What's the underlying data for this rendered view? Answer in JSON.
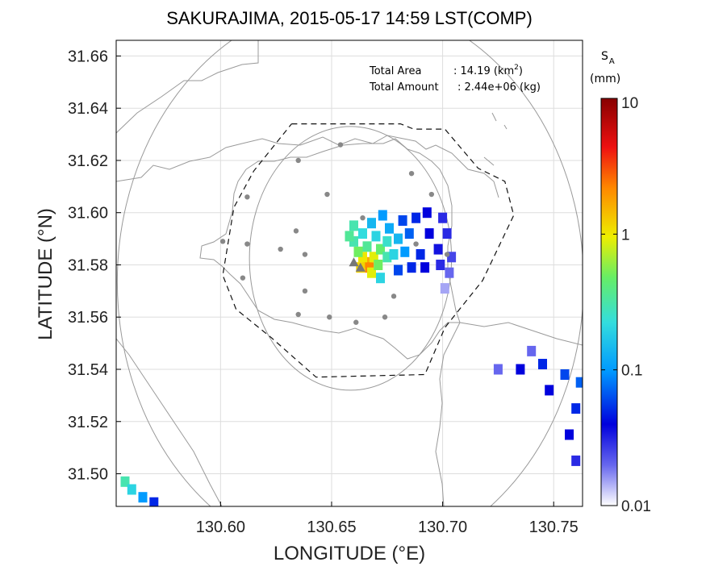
{
  "chart_data": {
    "type": "heatmap",
    "title": "SAKURAJIMA, 2015-05-17 14:59 LST(COMP)",
    "xlabel": "LONGITUDE (°E)",
    "ylabel": "LATITUDE (°N)",
    "xlim": [
      130.553,
      130.763
    ],
    "ylim": [
      31.4875,
      31.666
    ],
    "xticks": [
      130.6,
      130.65,
      130.7,
      130.75
    ],
    "xtick_labels": [
      "130.60",
      "130.65",
      "130.70",
      "130.75"
    ],
    "yticks": [
      31.5,
      31.52,
      31.54,
      31.56,
      31.58,
      31.6,
      31.62,
      31.64,
      31.66
    ],
    "ytick_labels": [
      "31.50",
      "31.52",
      "31.54",
      "31.56",
      "31.58",
      "31.60",
      "31.62",
      "31.64",
      "31.66"
    ],
    "grid": true,
    "annotations": {
      "total_area_label": "Total Area",
      "total_area_value": ": 14.19 (km",
      "total_area_sup": "2",
      "total_area_close": ")",
      "total_amount_label": "Total Amount",
      "total_amount_value": ": 2.44e+06 (kg)"
    },
    "colorbar": {
      "label_main": "S",
      "label_sub": "A",
      "unit": "(mm)",
      "scale": "log",
      "range": [
        0.01,
        10
      ],
      "ticks": [
        "10",
        "1",
        "0.1",
        "0.01"
      ],
      "placement": "right"
    },
    "vent_markers": [
      [
        130.66,
        31.581
      ],
      [
        130.663,
        31.579
      ]
    ],
    "stations": [
      [
        130.654,
        31.626
      ],
      [
        130.635,
        31.62
      ],
      [
        130.686,
        31.615
      ],
      [
        130.612,
        31.606
      ],
      [
        130.648,
        31.607
      ],
      [
        130.695,
        31.607
      ],
      [
        130.664,
        31.598
      ],
      [
        130.601,
        31.589
      ],
      [
        130.612,
        31.588
      ],
      [
        130.634,
        31.593
      ],
      [
        130.627,
        31.586
      ],
      [
        130.638,
        31.584
      ],
      [
        130.688,
        31.588
      ],
      [
        130.702,
        31.584
      ],
      [
        130.61,
        31.575
      ],
      [
        130.638,
        31.57
      ],
      [
        130.678,
        31.568
      ],
      [
        130.635,
        31.561
      ],
      [
        130.649,
        31.56
      ],
      [
        130.661,
        31.558
      ],
      [
        130.674,
        31.56
      ]
    ],
    "inner_circle": {
      "center": [
        130.6585,
        31.5825
      ],
      "radius_lon": 0.0455,
      "radius_lat": 0.0505
    },
    "outer_circle": {
      "center": [
        130.6585,
        31.5735
      ],
      "radius_lon": 0.105,
      "radius_lat": 0.1075
    },
    "dashed_boundary": [
      [
        130.632,
        31.634
      ],
      [
        130.681,
        31.634
      ],
      [
        130.687,
        31.632
      ],
      [
        130.701,
        31.632
      ],
      [
        130.716,
        31.617
      ],
      [
        130.728,
        31.612
      ],
      [
        130.732,
        31.599
      ],
      [
        130.718,
        31.574
      ],
      [
        130.701,
        31.556
      ],
      [
        130.692,
        31.538
      ],
      [
        130.643,
        31.537
      ],
      [
        130.623,
        31.552
      ],
      [
        130.607,
        31.563
      ],
      [
        130.601,
        31.576
      ],
      [
        130.606,
        31.602
      ],
      [
        130.615,
        31.616
      ],
      [
        130.632,
        31.634
      ]
    ],
    "ash_fields": [
      {
        "name": "plume",
        "cells": [
          [
            130.666,
            31.581,
            1.6
          ],
          [
            130.667,
            31.579,
            2.2
          ],
          [
            130.664,
            31.583,
            1.0
          ],
          [
            130.669,
            31.583,
            0.9
          ],
          [
            130.668,
            31.577,
            0.9
          ],
          [
            130.663,
            31.579,
            1.2
          ],
          [
            130.671,
            31.58,
            0.5
          ],
          [
            130.662,
            31.585,
            0.5
          ],
          [
            130.672,
            31.586,
            0.45
          ],
          [
            130.666,
            31.587,
            0.35
          ],
          [
            130.66,
            31.589,
            0.3
          ],
          [
            130.675,
            31.583,
            0.3
          ],
          [
            130.675,
            31.589,
            0.25
          ],
          [
            130.678,
            31.584,
            0.2
          ],
          [
            130.67,
            31.591,
            0.2
          ],
          [
            130.664,
            31.592,
            0.22
          ],
          [
            130.68,
            31.59,
            0.14
          ],
          [
            130.683,
            31.585,
            0.1
          ],
          [
            130.676,
            31.594,
            0.12
          ],
          [
            130.668,
            31.596,
            0.14
          ],
          [
            130.685,
            31.592,
            0.07
          ],
          [
            130.69,
            31.584,
            0.05
          ],
          [
            130.682,
            31.597,
            0.06
          ],
          [
            130.688,
            31.598,
            0.05
          ],
          [
            130.694,
            31.592,
            0.04
          ],
          [
            130.698,
            31.586,
            0.035
          ],
          [
            130.693,
            31.6,
            0.04
          ],
          [
            130.7,
            31.598,
            0.03
          ],
          [
            130.702,
            31.592,
            0.03
          ],
          [
            130.699,
            31.58,
            0.03
          ],
          [
            130.68,
            31.578,
            0.06
          ],
          [
            130.672,
            31.575,
            0.2
          ],
          [
            130.66,
            31.595,
            0.3
          ],
          [
            130.658,
            31.591,
            0.35
          ],
          [
            130.673,
            31.599,
            0.1
          ],
          [
            130.686,
            31.579,
            0.05
          ],
          [
            130.692,
            31.579,
            0.04
          ],
          [
            130.704,
            31.583,
            0.025
          ],
          [
            130.703,
            31.577,
            0.02
          ],
          [
            130.701,
            31.571,
            0.015
          ]
        ]
      },
      {
        "name": "south-east",
        "cells": [
          [
            130.735,
            31.54,
            0.04
          ],
          [
            130.745,
            31.542,
            0.05
          ],
          [
            130.755,
            31.538,
            0.06
          ],
          [
            130.762,
            31.535,
            0.07
          ],
          [
            130.748,
            31.532,
            0.04
          ],
          [
            130.76,
            31.525,
            0.05
          ],
          [
            130.757,
            31.515,
            0.04
          ],
          [
            130.76,
            31.505,
            0.03
          ],
          [
            130.725,
            31.54,
            0.02
          ],
          [
            130.74,
            31.547,
            0.02
          ]
        ]
      },
      {
        "name": "south-west",
        "cells": [
          [
            130.557,
            31.497,
            0.3
          ],
          [
            130.56,
            31.494,
            0.2
          ],
          [
            130.565,
            31.491,
            0.1
          ],
          [
            130.57,
            31.489,
            0.05
          ]
        ]
      }
    ]
  }
}
